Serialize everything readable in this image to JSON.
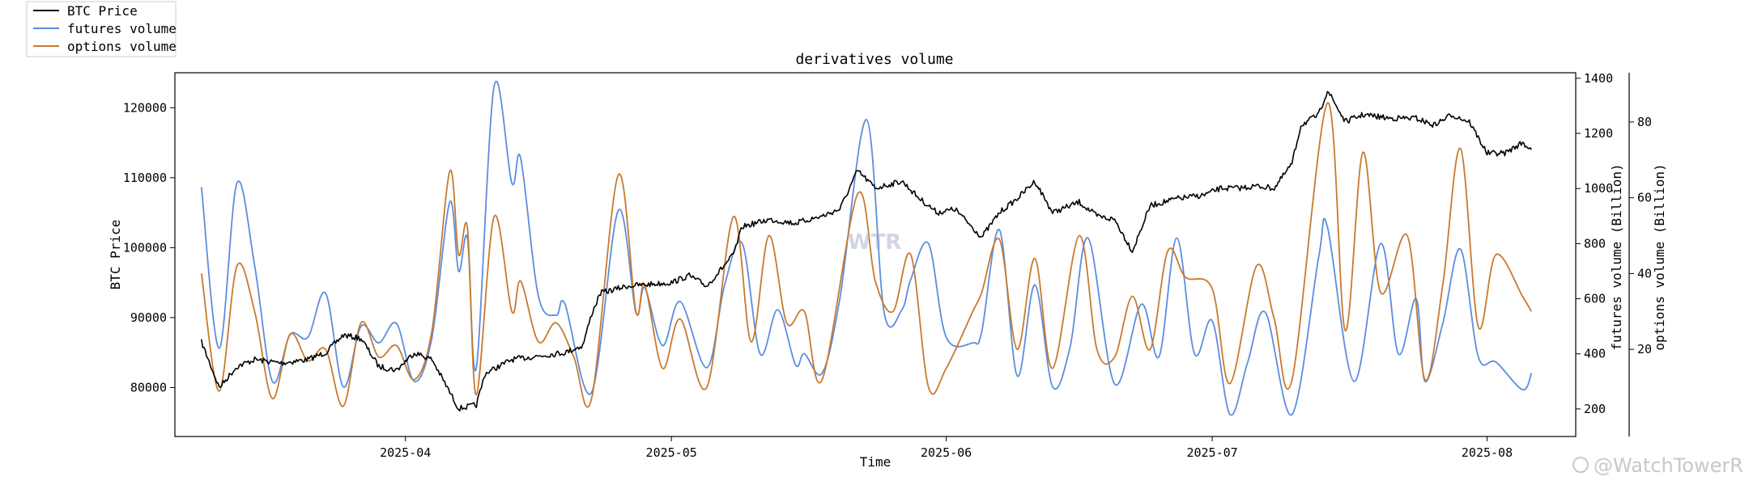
{
  "chart_data": {
    "type": "line",
    "title": "derivatives volume",
    "xlabel": "Time",
    "x_ticks": [
      "2025-04",
      "2025-05",
      "2025-06",
      "2025-07",
      "2025-08"
    ],
    "x_range": [
      "2025-03-06",
      "2025-08-11"
    ],
    "legend_location": "top-left, outside plot",
    "axes": {
      "left": {
        "label": "BTC Price",
        "ylim": [
          73000,
          125000
        ],
        "ticks": [
          80000,
          90000,
          100000,
          110000,
          120000
        ]
      },
      "right": {
        "label": "futures volume (Billion)",
        "ylim": [
          100,
          1420
        ],
        "ticks": [
          200,
          400,
          600,
          800,
          1000,
          1200,
          1400
        ]
      },
      "right2": {
        "label": "options volume (Billion)",
        "ylim": [
          -3,
          93
        ],
        "ticks": [
          20,
          40,
          60,
          80
        ]
      }
    },
    "series": [
      {
        "name": "BTC Price",
        "axis": "left",
        "color": "#000000",
        "noise": true,
        "points": [
          [
            "2025-03-09",
            86500
          ],
          [
            "2025-03-11",
            80000
          ],
          [
            "2025-03-13",
            83000
          ],
          [
            "2025-03-15",
            84000
          ],
          [
            "2025-03-18",
            83500
          ],
          [
            "2025-03-21",
            84000
          ],
          [
            "2025-03-23",
            85000
          ],
          [
            "2025-03-25",
            87500
          ],
          [
            "2025-03-27",
            87000
          ],
          [
            "2025-03-29",
            83000
          ],
          [
            "2025-03-31",
            82500
          ],
          [
            "2025-04-02",
            85000
          ],
          [
            "2025-04-04",
            84000
          ],
          [
            "2025-04-07",
            77000
          ],
          [
            "2025-04-09",
            77500
          ],
          [
            "2025-04-10",
            82000
          ],
          [
            "2025-04-13",
            84000
          ],
          [
            "2025-04-16",
            84500
          ],
          [
            "2025-04-19",
            85000
          ],
          [
            "2025-04-21",
            86000
          ],
          [
            "2025-04-22",
            90500
          ],
          [
            "2025-04-23",
            93500
          ],
          [
            "2025-04-26",
            94500
          ],
          [
            "2025-04-29",
            94800
          ],
          [
            "2025-05-01",
            95000
          ],
          [
            "2025-05-03",
            96000
          ],
          [
            "2025-05-05",
            94500
          ],
          [
            "2025-05-08",
            99000
          ],
          [
            "2025-05-09",
            103000
          ],
          [
            "2025-05-12",
            104000
          ],
          [
            "2025-05-15",
            103500
          ],
          [
            "2025-05-18",
            104500
          ],
          [
            "2025-05-20",
            105500
          ],
          [
            "2025-05-22",
            111000
          ],
          [
            "2025-05-24",
            108500
          ],
          [
            "2025-05-27",
            109500
          ],
          [
            "2025-05-29",
            107000
          ],
          [
            "2025-05-31",
            105000
          ],
          [
            "2025-06-02",
            105500
          ],
          [
            "2025-06-05",
            101500
          ],
          [
            "2025-06-07",
            105000
          ],
          [
            "2025-06-09",
            107000
          ],
          [
            "2025-06-11",
            109500
          ],
          [
            "2025-06-13",
            105000
          ],
          [
            "2025-06-16",
            106500
          ],
          [
            "2025-06-18",
            104500
          ],
          [
            "2025-06-20",
            104000
          ],
          [
            "2025-06-22",
            99500
          ],
          [
            "2025-06-24",
            106000
          ],
          [
            "2025-06-27",
            107000
          ],
          [
            "2025-06-30",
            107500
          ],
          [
            "2025-07-02",
            108500
          ],
          [
            "2025-07-04",
            108500
          ],
          [
            "2025-07-06",
            108800
          ],
          [
            "2025-07-08",
            108500
          ],
          [
            "2025-07-10",
            112000
          ],
          [
            "2025-07-11",
            117500
          ],
          [
            "2025-07-13",
            119000
          ],
          [
            "2025-07-14",
            122500
          ],
          [
            "2025-07-16",
            118000
          ],
          [
            "2025-07-18",
            119000
          ],
          [
            "2025-07-21",
            118500
          ],
          [
            "2025-07-24",
            118500
          ],
          [
            "2025-07-26",
            117500
          ],
          [
            "2025-07-28",
            119000
          ],
          [
            "2025-07-30",
            118000
          ],
          [
            "2025-08-01",
            113500
          ],
          [
            "2025-08-03",
            113500
          ],
          [
            "2025-08-05",
            115000
          ],
          [
            "2025-08-06",
            114000
          ]
        ]
      },
      {
        "name": "futures volume",
        "axis": "right",
        "color": "#5b8de0",
        "points": [
          [
            "2025-03-09",
            1005
          ],
          [
            "2025-03-11",
            420
          ],
          [
            "2025-03-13",
            1020
          ],
          [
            "2025-03-15",
            720
          ],
          [
            "2025-03-17",
            300
          ],
          [
            "2025-03-19",
            470
          ],
          [
            "2025-03-21",
            460
          ],
          [
            "2025-03-23",
            620
          ],
          [
            "2025-03-25",
            280
          ],
          [
            "2025-03-27",
            500
          ],
          [
            "2025-03-29",
            440
          ],
          [
            "2025-03-31",
            510
          ],
          [
            "2025-04-02",
            300
          ],
          [
            "2025-04-04",
            460
          ],
          [
            "2025-04-06",
            950
          ],
          [
            "2025-04-07",
            700
          ],
          [
            "2025-04-08",
            820
          ],
          [
            "2025-04-09",
            350
          ],
          [
            "2025-04-11",
            1370
          ],
          [
            "2025-04-13",
            1020
          ],
          [
            "2025-04-14",
            1110
          ],
          [
            "2025-04-16",
            610
          ],
          [
            "2025-04-18",
            540
          ],
          [
            "2025-04-19",
            580
          ],
          [
            "2025-04-22",
            260
          ],
          [
            "2025-04-25",
            920
          ],
          [
            "2025-04-27",
            550
          ],
          [
            "2025-04-28",
            640
          ],
          [
            "2025-04-30",
            430
          ],
          [
            "2025-05-02",
            590
          ],
          [
            "2025-05-05",
            350
          ],
          [
            "2025-05-07",
            650
          ],
          [
            "2025-05-09",
            800
          ],
          [
            "2025-05-11",
            400
          ],
          [
            "2025-05-13",
            560
          ],
          [
            "2025-05-15",
            360
          ],
          [
            "2025-05-16",
            400
          ],
          [
            "2025-05-18",
            330
          ],
          [
            "2025-05-20",
            600
          ],
          [
            "2025-05-23",
            1250
          ],
          [
            "2025-05-25",
            550
          ],
          [
            "2025-05-27",
            560
          ],
          [
            "2025-05-28",
            670
          ],
          [
            "2025-05-30",
            800
          ],
          [
            "2025-06-01",
            460
          ],
          [
            "2025-06-04",
            440
          ],
          [
            "2025-06-05",
            480
          ],
          [
            "2025-06-07",
            850
          ],
          [
            "2025-06-09",
            320
          ],
          [
            "2025-06-11",
            650
          ],
          [
            "2025-06-13",
            280
          ],
          [
            "2025-06-15",
            430
          ],
          [
            "2025-06-17",
            820
          ],
          [
            "2025-06-20",
            290
          ],
          [
            "2025-06-23",
            580
          ],
          [
            "2025-06-25",
            390
          ],
          [
            "2025-06-27",
            820
          ],
          [
            "2025-06-29",
            400
          ],
          [
            "2025-07-01",
            520
          ],
          [
            "2025-07-03",
            180
          ],
          [
            "2025-07-05",
            370
          ],
          [
            "2025-07-07",
            550
          ],
          [
            "2025-07-10",
            180
          ],
          [
            "2025-07-13",
            750
          ],
          [
            "2025-07-14",
            860
          ],
          [
            "2025-07-17",
            300
          ],
          [
            "2025-07-20",
            800
          ],
          [
            "2025-07-22",
            400
          ],
          [
            "2025-07-24",
            600
          ],
          [
            "2025-07-25",
            300
          ],
          [
            "2025-07-27",
            510
          ],
          [
            "2025-07-29",
            780
          ],
          [
            "2025-07-31",
            390
          ],
          [
            "2025-08-02",
            370
          ],
          [
            "2025-08-05",
            270
          ],
          [
            "2025-08-06",
            330
          ]
        ]
      },
      {
        "name": "options volume",
        "axis": "right2",
        "color": "#c87a2d",
        "points": [
          [
            "2025-03-09",
            40
          ],
          [
            "2025-03-11",
            9
          ],
          [
            "2025-03-13",
            42
          ],
          [
            "2025-03-15",
            30
          ],
          [
            "2025-03-17",
            7
          ],
          [
            "2025-03-19",
            24
          ],
          [
            "2025-03-21",
            17
          ],
          [
            "2025-03-23",
            20
          ],
          [
            "2025-03-25",
            5
          ],
          [
            "2025-03-27",
            27
          ],
          [
            "2025-03-29",
            18
          ],
          [
            "2025-03-31",
            21
          ],
          [
            "2025-04-02",
            12
          ],
          [
            "2025-04-04",
            25
          ],
          [
            "2025-04-06",
            67
          ],
          [
            "2025-04-07",
            45
          ],
          [
            "2025-04-08",
            52
          ],
          [
            "2025-04-09",
            8
          ],
          [
            "2025-04-11",
            55
          ],
          [
            "2025-04-13",
            30
          ],
          [
            "2025-04-14",
            38
          ],
          [
            "2025-04-16",
            22
          ],
          [
            "2025-04-18",
            27
          ],
          [
            "2025-04-20",
            18
          ],
          [
            "2025-04-22",
            7
          ],
          [
            "2025-04-25",
            66
          ],
          [
            "2025-04-27",
            30
          ],
          [
            "2025-04-28",
            37
          ],
          [
            "2025-04-30",
            15
          ],
          [
            "2025-05-02",
            28
          ],
          [
            "2025-05-05",
            10
          ],
          [
            "2025-05-08",
            55
          ],
          [
            "2025-05-10",
            22
          ],
          [
            "2025-05-12",
            50
          ],
          [
            "2025-05-14",
            27
          ],
          [
            "2025-05-16",
            30
          ],
          [
            "2025-05-18",
            12
          ],
          [
            "2025-05-22",
            61
          ],
          [
            "2025-05-24",
            38
          ],
          [
            "2025-05-26",
            30
          ],
          [
            "2025-05-28",
            45
          ],
          [
            "2025-05-30",
            10
          ],
          [
            "2025-06-01",
            15
          ],
          [
            "2025-06-04",
            30
          ],
          [
            "2025-06-05",
            35
          ],
          [
            "2025-06-07",
            49
          ],
          [
            "2025-06-09",
            20
          ],
          [
            "2025-06-11",
            44
          ],
          [
            "2025-06-13",
            15
          ],
          [
            "2025-06-16",
            50
          ],
          [
            "2025-06-18",
            20
          ],
          [
            "2025-06-20",
            18
          ],
          [
            "2025-06-22",
            34
          ],
          [
            "2025-06-24",
            20
          ],
          [
            "2025-06-26",
            46
          ],
          [
            "2025-06-28",
            39
          ],
          [
            "2025-07-01",
            36
          ],
          [
            "2025-07-03",
            11
          ],
          [
            "2025-07-06",
            42
          ],
          [
            "2025-07-08",
            28
          ],
          [
            "2025-07-10",
            12
          ],
          [
            "2025-07-14",
            85
          ],
          [
            "2025-07-16",
            25
          ],
          [
            "2025-07-18",
            72
          ],
          [
            "2025-07-20",
            35
          ],
          [
            "2025-07-23",
            50
          ],
          [
            "2025-07-25",
            12
          ],
          [
            "2025-07-27",
            37
          ],
          [
            "2025-07-29",
            73
          ],
          [
            "2025-07-31",
            26
          ],
          [
            "2025-08-02",
            45
          ],
          [
            "2025-08-05",
            34
          ],
          [
            "2025-08-06",
            30
          ]
        ]
      }
    ]
  },
  "watermarks": {
    "center": "WTR",
    "corner": "@WatchTowerR"
  },
  "colors": {
    "btc": "#000000",
    "futures": "#5b8de0",
    "options": "#c87a2d"
  }
}
